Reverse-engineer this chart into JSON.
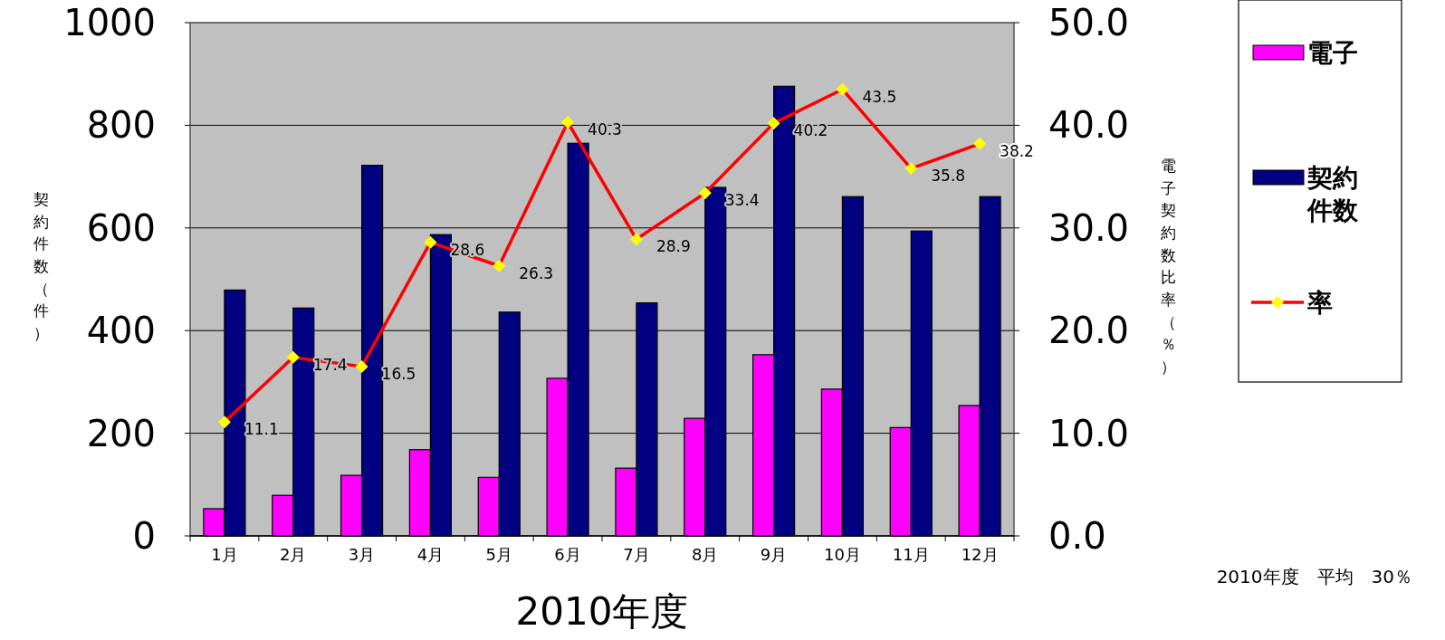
{
  "chart_data": {
    "type": "bar",
    "xlabel": "2010年度",
    "ylabel": "契約件数（件）",
    "y2label": "電子契約数比率（％）",
    "categories": [
      "1月",
      "2月",
      "3月",
      "4月",
      "5月",
      "6月",
      "7月",
      "8月",
      "9月",
      "10月",
      "11月",
      "12月"
    ],
    "series": [
      {
        "name": "電子",
        "color": "#ff00ff",
        "values": [
          53,
          79,
          118,
          168,
          114,
          307,
          132,
          229,
          353,
          286,
          211,
          254
        ]
      },
      {
        "name": "契約件数",
        "color": "#000080",
        "values": [
          479,
          444,
          722,
          587,
          436,
          765,
          454,
          679,
          876,
          661,
          594,
          661
        ]
      },
      {
        "name": "率",
        "type": "line",
        "axis": "y2",
        "color": "#ff0000",
        "marker": "diamond",
        "values": [
          11.1,
          17.4,
          16.5,
          28.6,
          26.3,
          40.3,
          28.9,
          33.4,
          40.2,
          43.5,
          35.8,
          38.2
        ],
        "value_labels": [
          "11.1",
          "17.4",
          "16.5",
          "28.6",
          "26.3",
          "40.3",
          "28.9",
          "33.4",
          "40.2",
          "43.5",
          "35.8",
          "38.2"
        ]
      }
    ],
    "ylim": [
      0,
      1000
    ],
    "yticks": [
      0,
      200,
      400,
      600,
      800,
      1000
    ],
    "y2lim": [
      0,
      50
    ],
    "y2ticks": [
      {
        "value": 0,
        "label": "0.0"
      },
      {
        "value": 10,
        "label": "10.0"
      },
      {
        "value": 20,
        "label": "20.0"
      },
      {
        "value": 30,
        "label": "30.0"
      },
      {
        "value": 40,
        "label": "40.0"
      },
      {
        "value": 50,
        "label": "50.0"
      }
    ],
    "grid": "y",
    "legend": "right",
    "annotations": [
      "2010年度　平均　30％"
    ]
  }
}
